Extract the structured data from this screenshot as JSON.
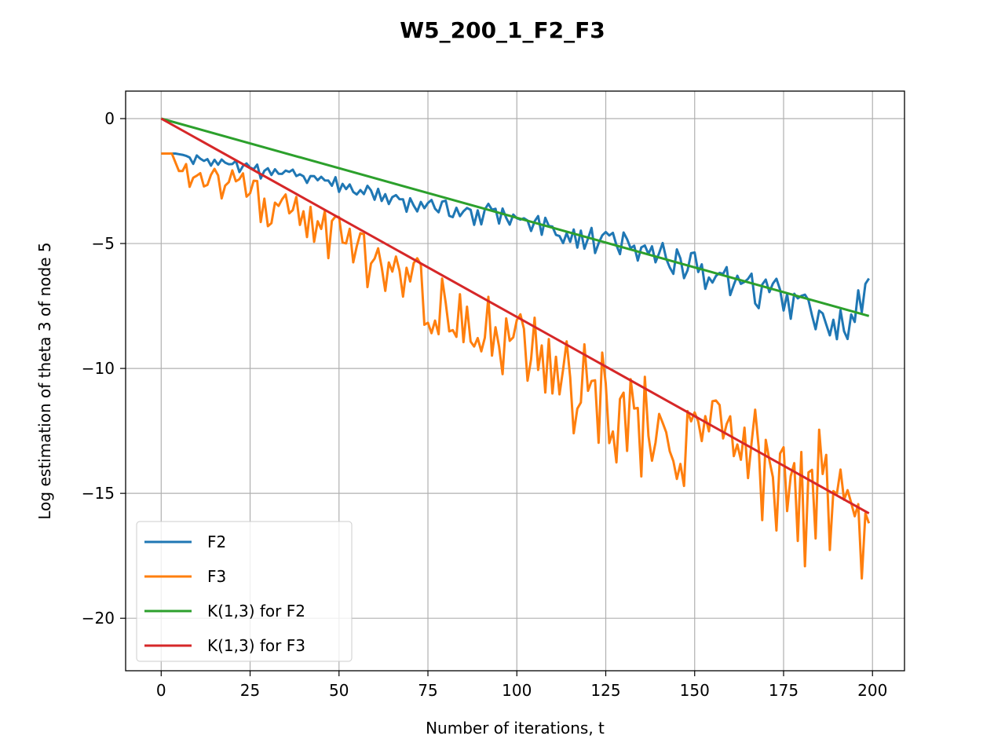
{
  "chart_data": {
    "type": "line",
    "title": "W5_200_1_F2_F3",
    "xlabel": "Number of iterations, t",
    "ylabel": "Log estimation of theta 3 of node 5",
    "xlim": [
      -10,
      209
    ],
    "ylim": [
      -22.1,
      1.1
    ],
    "xticks": [
      0,
      25,
      50,
      75,
      100,
      125,
      150,
      175,
      200
    ],
    "yticks": [
      0,
      -5,
      -10,
      -15,
      -20
    ],
    "ytick_labels": [
      "0",
      "−5",
      "−10",
      "−15",
      "−20"
    ],
    "grid": true,
    "legend_position": "lower-left",
    "series": [
      {
        "name": "F2",
        "color": "#1f77b4",
        "anchors": [
          [
            0,
            -1.4
          ],
          [
            4,
            -1.4
          ],
          [
            8,
            -1.5
          ],
          [
            20,
            -1.8
          ],
          [
            28,
            -2.0
          ],
          [
            40,
            -2.3
          ],
          [
            55,
            -2.7
          ],
          [
            70,
            -3.2
          ],
          [
            85,
            -3.5
          ],
          [
            100,
            -3.9
          ],
          [
            115,
            -4.3
          ],
          [
            130,
            -4.9
          ],
          [
            150,
            -5.7
          ],
          [
            165,
            -6.4
          ],
          [
            180,
            -7.2
          ],
          [
            192,
            -7.9
          ],
          [
            199,
            -6.4
          ]
        ],
        "noise_amp": [
          0.3,
          1.2
        ],
        "seed": 11
      },
      {
        "name": "F3",
        "color": "#ff7f0e",
        "anchors": [
          [
            0,
            -1.4
          ],
          [
            3,
            -1.4
          ],
          [
            5,
            -2.1
          ],
          [
            10,
            -2.1
          ],
          [
            20,
            -2.4
          ],
          [
            40,
            -3.8
          ],
          [
            60,
            -5.3
          ],
          [
            80,
            -7.0
          ],
          [
            100,
            -8.6
          ],
          [
            120,
            -10.2
          ],
          [
            140,
            -11.4
          ],
          [
            160,
            -12.7
          ],
          [
            180,
            -13.8
          ],
          [
            195,
            -14.6
          ],
          [
            199,
            -16.2
          ]
        ],
        "noise_amp": [
          0.7,
          4.5
        ],
        "seed": 29
      },
      {
        "name": "K(1,3) for F2",
        "color": "#2ca02c",
        "x": [
          0,
          199
        ],
        "y": [
          0,
          -7.9
        ]
      },
      {
        "name": "K(1,3) for F3",
        "color": "#d62728",
        "x": [
          0,
          199
        ],
        "y": [
          0,
          -15.8
        ]
      }
    ]
  }
}
